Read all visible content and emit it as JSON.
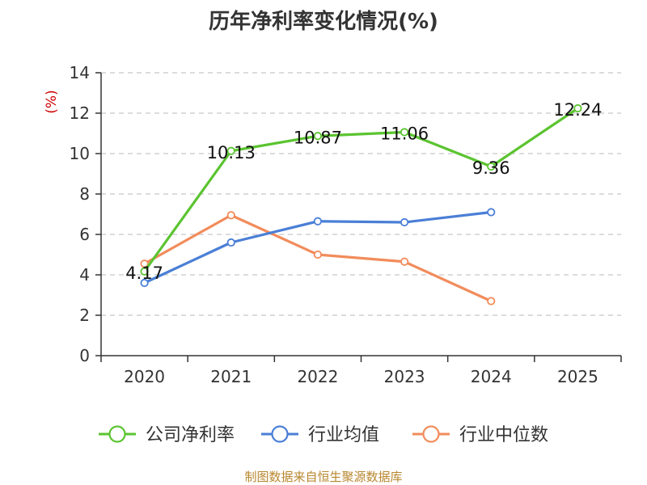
{
  "title": "历年净利率变化情况(%)",
  "source": "制图数据来自恒生聚源数据库",
  "colors": {
    "company": "#5bc431",
    "industry_avg": "#4a7fd6",
    "industry_median": "#f28c5b",
    "grid": "#c8c8c8",
    "axis": "#333333"
  },
  "chart_data": {
    "type": "line",
    "title": "历年净利率变化情况(%)",
    "ylabel": "(%)",
    "xlabel": "",
    "categories": [
      "2020",
      "2021",
      "2022",
      "2023",
      "2024",
      "2025"
    ],
    "ylim": [
      0,
      14
    ],
    "yticks": [
      0,
      2,
      4,
      6,
      8,
      10,
      12,
      14
    ],
    "grid": true,
    "legend_position": "bottom",
    "series": [
      {
        "name": "公司净利率",
        "color_key": "company",
        "values": [
          4.17,
          10.13,
          10.87,
          11.06,
          9.36,
          12.24
        ],
        "labels": [
          "4.17",
          "10.13",
          "10.87",
          "11.06",
          "9.36",
          "12.24"
        ]
      },
      {
        "name": "行业均值",
        "color_key": "industry_avg",
        "values": [
          3.6,
          5.6,
          6.65,
          6.6,
          7.1,
          null
        ]
      },
      {
        "name": "行业中位数",
        "color_key": "industry_median",
        "values": [
          4.55,
          6.95,
          5.0,
          4.65,
          2.7,
          null
        ]
      }
    ]
  }
}
